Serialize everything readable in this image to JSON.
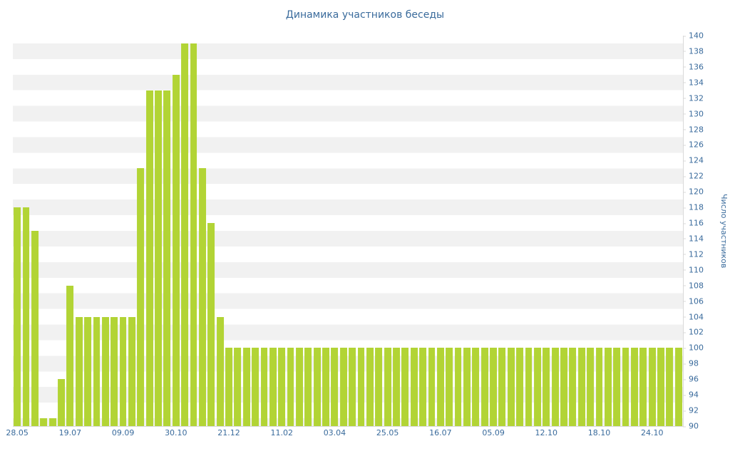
{
  "colors": {
    "bar": "#b2d435",
    "stripe": "#f1f1f1",
    "axis_text": "#3a6b9c",
    "axis_line": "#d9d9d9"
  },
  "chart_data": {
    "type": "bar",
    "title": "Динамика участников беседы",
    "xlabel": "",
    "ylabel": "Число участников",
    "ylim": [
      90,
      140
    ],
    "y_tick_step": 2,
    "y_ticks": [
      90,
      92,
      94,
      96,
      98,
      100,
      102,
      104,
      106,
      108,
      110,
      112,
      114,
      116,
      118,
      120,
      122,
      124,
      126,
      128,
      130,
      132,
      134,
      136,
      138,
      140
    ],
    "x_tick_labels": [
      "28.05",
      "19.07",
      "09.09",
      "30.10",
      "21.12",
      "11.02",
      "03.04",
      "25.05",
      "16.07",
      "05.09",
      "12.10",
      "18.10",
      "24.10"
    ],
    "x_tick_indices": [
      0,
      6,
      12,
      18,
      24,
      30,
      36,
      42,
      48,
      54,
      60,
      66,
      72
    ],
    "values": [
      118,
      118,
      115,
      91,
      91,
      96,
      108,
      104,
      104,
      104,
      104,
      104,
      104,
      104,
      123,
      133,
      133,
      133,
      135,
      139,
      139,
      123,
      116,
      104,
      100,
      100,
      100,
      100,
      100,
      100,
      100,
      100,
      100,
      100,
      100,
      100,
      100,
      100,
      100,
      100,
      100,
      100,
      100,
      100,
      100,
      100,
      100,
      100,
      100,
      100,
      100,
      100,
      100,
      100,
      100,
      100,
      100,
      100,
      100,
      100,
      100,
      100,
      100,
      100,
      100,
      100,
      100,
      100,
      100,
      100,
      100,
      100,
      100,
      100,
      100,
      100
    ],
    "grid": "horizontal-stripes",
    "legend": "none",
    "y_axis_position": "right"
  }
}
